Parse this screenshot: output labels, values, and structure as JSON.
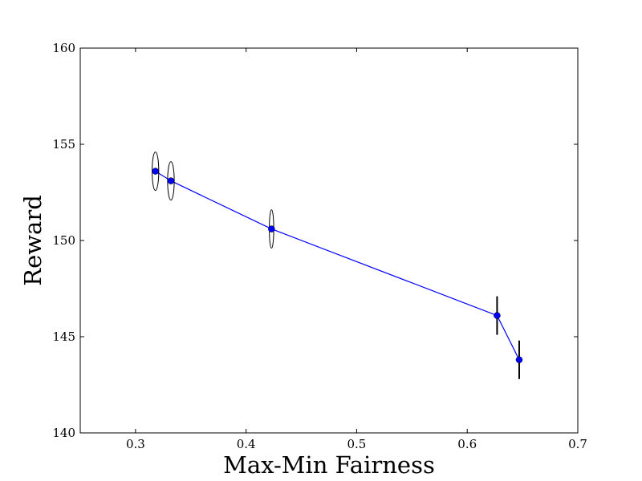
{
  "chart_data": {
    "type": "line",
    "title": "",
    "xlabel": "Max-Min Fairness",
    "ylabel": "Reward",
    "xlim": [
      0.25,
      0.7
    ],
    "ylim": [
      140,
      160
    ],
    "xticks": [
      "0.3",
      "0.4",
      "0.5",
      "0.6",
      "0.7"
    ],
    "yticks": [
      "140",
      "145",
      "150",
      "155",
      "160"
    ],
    "grid": false,
    "series": [
      {
        "color": "#0000ff",
        "marker": "circle",
        "points": [
          {
            "x": 0.318,
            "y": 153.6,
            "xerr": 0.003,
            "yerr": 1.0
          },
          {
            "x": 0.332,
            "y": 153.1,
            "xerr": 0.003,
            "yerr": 1.0
          },
          {
            "x": 0.423,
            "y": 150.6,
            "xerr": 0.002,
            "yerr": 1.0
          },
          {
            "x": 0.627,
            "y": 146.1,
            "xerr": 0.0,
            "yerr": 1.0
          },
          {
            "x": 0.647,
            "y": 143.8,
            "xerr": 0.0,
            "yerr": 1.0
          }
        ]
      }
    ]
  }
}
